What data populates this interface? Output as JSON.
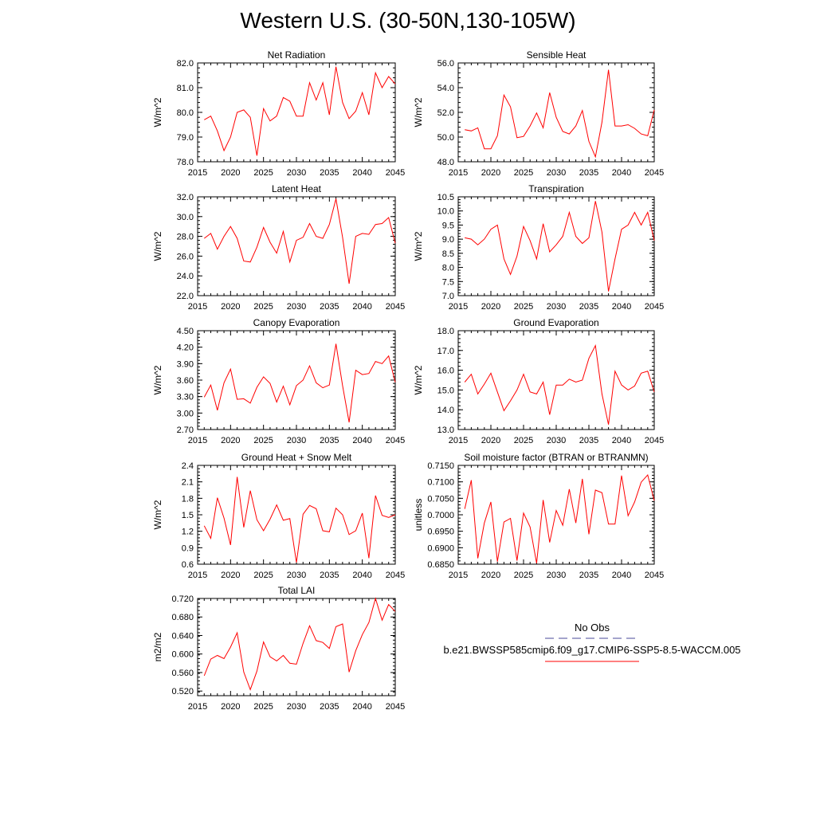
{
  "title": "Western U.S. (30-50N,130-105W)",
  "colors": {
    "series": "#ff0000",
    "obs": "#4a4a99",
    "axis": "#000000"
  },
  "legend": {
    "obs_label": "No Obs",
    "model_label": "b.e21.BWSSP585cmip6.f09_g17.CMIP6-SSP5-8.5-WACCM.005"
  },
  "chart_data": [
    {
      "type": "line",
      "title": "Net Radiation",
      "ylabel": "W/m^2",
      "xlim": [
        2015,
        2045
      ],
      "ylim": [
        78.0,
        82.0
      ],
      "xticks": [
        2015,
        2020,
        2025,
        2030,
        2035,
        2040,
        2045
      ],
      "yticks": [
        78.0,
        79.0,
        80.0,
        81.0,
        82.0
      ],
      "yticklabels": [
        "78.0",
        "79.0",
        "80.0",
        "81.0",
        "82.0"
      ],
      "x": [
        2016,
        2017,
        2018,
        2019,
        2020,
        2021,
        2022,
        2023,
        2024,
        2025,
        2026,
        2027,
        2028,
        2029,
        2030,
        2031,
        2032,
        2033,
        2034,
        2035,
        2036,
        2037,
        2038,
        2039,
        2040,
        2041,
        2042,
        2043,
        2044,
        2045
      ],
      "series": [
        {
          "values": [
            79.7,
            79.85,
            79.25,
            78.45,
            79.0,
            80.0,
            80.1,
            79.8,
            78.25,
            80.15,
            79.65,
            79.85,
            80.6,
            80.45,
            79.85,
            79.85,
            81.2,
            80.5,
            81.2,
            79.9,
            81.85,
            80.4,
            79.75,
            80.05,
            80.8,
            79.9,
            81.6,
            81.0,
            81.45,
            81.15
          ]
        }
      ]
    },
    {
      "type": "line",
      "title": "Sensible Heat",
      "ylabel": "W/m^2",
      "xlim": [
        2015,
        2045
      ],
      "ylim": [
        48.0,
        56.0
      ],
      "xticks": [
        2015,
        2020,
        2025,
        2030,
        2035,
        2040,
        2045
      ],
      "yticks": [
        48.0,
        50.0,
        52.0,
        54.0,
        56.0
      ],
      "yticklabels": [
        "48.0",
        "50.0",
        "52.0",
        "54.0",
        "56.0"
      ],
      "x": [
        2016,
        2017,
        2018,
        2019,
        2020,
        2021,
        2022,
        2023,
        2024,
        2025,
        2026,
        2027,
        2028,
        2029,
        2030,
        2031,
        2032,
        2033,
        2034,
        2035,
        2036,
        2037,
        2038,
        2039,
        2040,
        2041,
        2042,
        2043,
        2044,
        2045
      ],
      "series": [
        {
          "values": [
            50.6,
            50.5,
            50.75,
            49.05,
            49.05,
            50.1,
            53.4,
            52.45,
            49.95,
            50.05,
            50.9,
            51.95,
            50.75,
            53.6,
            51.6,
            50.45,
            50.25,
            50.9,
            52.15,
            49.65,
            48.4,
            51.2,
            55.45,
            50.9,
            50.9,
            51.0,
            50.7,
            50.25,
            50.1,
            52.2
          ]
        }
      ]
    },
    {
      "type": "line",
      "title": "Latent Heat",
      "ylabel": "W/m^2",
      "xlim": [
        2015,
        2045
      ],
      "ylim": [
        22.0,
        32.0
      ],
      "xticks": [
        2015,
        2020,
        2025,
        2030,
        2035,
        2040,
        2045
      ],
      "yticks": [
        22.0,
        24.0,
        26.0,
        28.0,
        30.0,
        32.0
      ],
      "yticklabels": [
        "22.0",
        "24.0",
        "26.0",
        "28.0",
        "30.0",
        "32.0"
      ],
      "x": [
        2016,
        2017,
        2018,
        2019,
        2020,
        2021,
        2022,
        2023,
        2024,
        2025,
        2026,
        2027,
        2028,
        2029,
        2030,
        2031,
        2032,
        2033,
        2034,
        2035,
        2036,
        2037,
        2038,
        2039,
        2040,
        2041,
        2042,
        2043,
        2044,
        2045
      ],
      "series": [
        {
          "values": [
            27.8,
            28.3,
            26.7,
            28.0,
            29.0,
            27.8,
            25.5,
            25.4,
            26.9,
            28.9,
            27.4,
            26.3,
            28.5,
            25.4,
            27.6,
            27.9,
            29.3,
            28.0,
            27.8,
            29.2,
            31.8,
            27.9,
            23.2,
            28.0,
            28.3,
            28.2,
            29.2,
            29.3,
            29.9,
            27.3
          ]
        }
      ]
    },
    {
      "type": "line",
      "title": "Transpiration",
      "ylabel": "W/m^2",
      "xlim": [
        2015,
        2045
      ],
      "ylim": [
        7.0,
        10.5
      ],
      "xticks": [
        2015,
        2020,
        2025,
        2030,
        2035,
        2040,
        2045
      ],
      "yticks": [
        7.0,
        7.5,
        8.0,
        8.5,
        9.0,
        9.5,
        10.0,
        10.5
      ],
      "yticklabels": [
        "7.0",
        "7.5",
        "8.0",
        "8.5",
        "9.0",
        "9.5",
        "10.0",
        "10.5"
      ],
      "x": [
        2016,
        2017,
        2018,
        2019,
        2020,
        2021,
        2022,
        2023,
        2024,
        2025,
        2026,
        2027,
        2028,
        2029,
        2030,
        2031,
        2032,
        2033,
        2034,
        2035,
        2036,
        2037,
        2038,
        2039,
        2040,
        2041,
        2042,
        2043,
        2044,
        2045
      ],
      "series": [
        {
          "values": [
            9.05,
            9.0,
            8.8,
            9.0,
            9.35,
            9.5,
            8.3,
            7.75,
            8.4,
            9.45,
            8.95,
            8.3,
            9.55,
            8.55,
            8.8,
            9.1,
            9.95,
            9.1,
            8.85,
            9.05,
            10.35,
            9.25,
            7.15,
            8.3,
            9.35,
            9.5,
            9.95,
            9.5,
            9.95,
            8.95
          ]
        }
      ]
    },
    {
      "type": "line",
      "title": "Canopy Evaporation",
      "ylabel": "W/m^2",
      "xlim": [
        2015,
        2045
      ],
      "ylim": [
        2.7,
        4.5
      ],
      "xticks": [
        2015,
        2020,
        2025,
        2030,
        2035,
        2040,
        2045
      ],
      "yticks": [
        2.7,
        3.0,
        3.3,
        3.6,
        3.9,
        4.2,
        4.5
      ],
      "yticklabels": [
        "2.70",
        "3.00",
        "3.30",
        "3.60",
        "3.90",
        "4.20",
        "4.50"
      ],
      "x": [
        2016,
        2017,
        2018,
        2019,
        2020,
        2021,
        2022,
        2023,
        2024,
        2025,
        2026,
        2027,
        2028,
        2029,
        2030,
        2031,
        2032,
        2033,
        2034,
        2035,
        2036,
        2037,
        2038,
        2039,
        2040,
        2041,
        2042,
        2043,
        2044,
        2045
      ],
      "series": [
        {
          "values": [
            3.29,
            3.51,
            3.05,
            3.55,
            3.8,
            3.25,
            3.26,
            3.18,
            3.47,
            3.66,
            3.54,
            3.2,
            3.49,
            3.15,
            3.5,
            3.6,
            3.86,
            3.55,
            3.46,
            3.51,
            4.26,
            3.5,
            2.83,
            3.78,
            3.7,
            3.72,
            3.94,
            3.9,
            4.04,
            3.56
          ]
        }
      ]
    },
    {
      "type": "line",
      "title": "Ground Evaporation",
      "ylabel": "W/m^2",
      "xlim": [
        2015,
        2045
      ],
      "ylim": [
        13.0,
        18.0
      ],
      "xticks": [
        2015,
        2020,
        2025,
        2030,
        2035,
        2040,
        2045
      ],
      "yticks": [
        13.0,
        14.0,
        15.0,
        16.0,
        17.0,
        18.0
      ],
      "yticklabels": [
        "13.0",
        "14.0",
        "15.0",
        "16.0",
        "17.0",
        "18.0"
      ],
      "x": [
        2016,
        2017,
        2018,
        2019,
        2020,
        2021,
        2022,
        2023,
        2024,
        2025,
        2026,
        2027,
        2028,
        2029,
        2030,
        2031,
        2032,
        2033,
        2034,
        2035,
        2036,
        2037,
        2038,
        2039,
        2040,
        2041,
        2042,
        2043,
        2044,
        2045
      ],
      "series": [
        {
          "values": [
            15.4,
            15.8,
            14.8,
            15.3,
            15.85,
            14.9,
            13.95,
            14.45,
            15.0,
            15.8,
            14.9,
            14.8,
            15.4,
            13.75,
            15.25,
            15.25,
            15.55,
            15.4,
            15.5,
            16.6,
            17.25,
            14.8,
            13.25,
            15.95,
            15.25,
            15.0,
            15.2,
            15.85,
            15.95,
            14.9
          ]
        }
      ]
    },
    {
      "type": "line",
      "title": "Ground Heat + Snow Melt",
      "ylabel": "W/m^2",
      "xlim": [
        2015,
        2045
      ],
      "ylim": [
        0.6,
        2.4
      ],
      "xticks": [
        2015,
        2020,
        2025,
        2030,
        2035,
        2040,
        2045
      ],
      "yticks": [
        0.6,
        0.9,
        1.2,
        1.5,
        1.8,
        2.1,
        2.4
      ],
      "yticklabels": [
        "0.6",
        "0.9",
        "1.2",
        "1.5",
        "1.8",
        "2.1",
        "2.4"
      ],
      "x": [
        2016,
        2017,
        2018,
        2019,
        2020,
        2021,
        2022,
        2023,
        2024,
        2025,
        2026,
        2027,
        2028,
        2029,
        2030,
        2031,
        2032,
        2033,
        2034,
        2035,
        2036,
        2037,
        2038,
        2039,
        2040,
        2041,
        2042,
        2043,
        2044,
        2045
      ],
      "series": [
        {
          "values": [
            1.3,
            1.07,
            1.81,
            1.44,
            0.95,
            2.19,
            1.27,
            1.94,
            1.41,
            1.21,
            1.42,
            1.68,
            1.4,
            1.43,
            0.63,
            1.51,
            1.67,
            1.61,
            1.21,
            1.19,
            1.62,
            1.5,
            1.14,
            1.21,
            1.53,
            0.71,
            1.85,
            1.49,
            1.45,
            1.5
          ]
        }
      ]
    },
    {
      "type": "line",
      "title": "Soil moisture factor (BTRAN or BTRANMN)",
      "ylabel": "unitless",
      "xlim": [
        2015,
        2045
      ],
      "ylim": [
        0.685,
        0.715
      ],
      "xticks": [
        2015,
        2020,
        2025,
        2030,
        2035,
        2040,
        2045
      ],
      "yticks": [
        0.685,
        0.69,
        0.695,
        0.7,
        0.705,
        0.71,
        0.715
      ],
      "yticklabels": [
        "0.6850",
        "0.6900",
        "0.6950",
        "0.7000",
        "0.7050",
        "0.7100",
        "0.7150"
      ],
      "x": [
        2016,
        2017,
        2018,
        2019,
        2020,
        2021,
        2022,
        2023,
        2024,
        2025,
        2026,
        2027,
        2028,
        2029,
        2030,
        2031,
        2032,
        2033,
        2034,
        2035,
        2036,
        2037,
        2038,
        2039,
        2040,
        2041,
        2042,
        2043,
        2044,
        2045
      ],
      "series": [
        {
          "values": [
            0.7018,
            0.7105,
            0.6868,
            0.6975,
            0.7039,
            0.6858,
            0.6978,
            0.6989,
            0.6861,
            0.7005,
            0.6963,
            0.6853,
            0.7045,
            0.6916,
            0.7013,
            0.6968,
            0.7078,
            0.6975,
            0.7109,
            0.6941,
            0.7075,
            0.7067,
            0.6972,
            0.6972,
            0.7119,
            0.6997,
            0.7039,
            0.7099,
            0.7121,
            0.7043
          ]
        }
      ]
    },
    {
      "type": "line",
      "title": "Total LAI",
      "ylabel": "m2/m2",
      "xlim": [
        2015,
        2045
      ],
      "ylim": [
        0.51,
        0.72
      ],
      "xticks": [
        2015,
        2020,
        2025,
        2030,
        2035,
        2040,
        2045
      ],
      "yticks": [
        0.52,
        0.56,
        0.6,
        0.64,
        0.68,
        0.72
      ],
      "yticklabels": [
        "0.520",
        "0.560",
        "0.600",
        "0.640",
        "0.680",
        "0.720"
      ],
      "x": [
        2016,
        2017,
        2018,
        2019,
        2020,
        2021,
        2022,
        2023,
        2024,
        2025,
        2026,
        2027,
        2028,
        2029,
        2030,
        2031,
        2032,
        2033,
        2034,
        2035,
        2036,
        2037,
        2038,
        2039,
        2040,
        2041,
        2042,
        2043,
        2044,
        2045
      ],
      "series": [
        {
          "values": [
            0.553,
            0.589,
            0.597,
            0.59,
            0.615,
            0.646,
            0.561,
            0.523,
            0.563,
            0.626,
            0.594,
            0.585,
            0.597,
            0.58,
            0.578,
            0.623,
            0.661,
            0.629,
            0.625,
            0.612,
            0.659,
            0.665,
            0.561,
            0.607,
            0.642,
            0.668,
            0.72,
            0.673,
            0.707,
            0.692
          ]
        }
      ]
    }
  ]
}
